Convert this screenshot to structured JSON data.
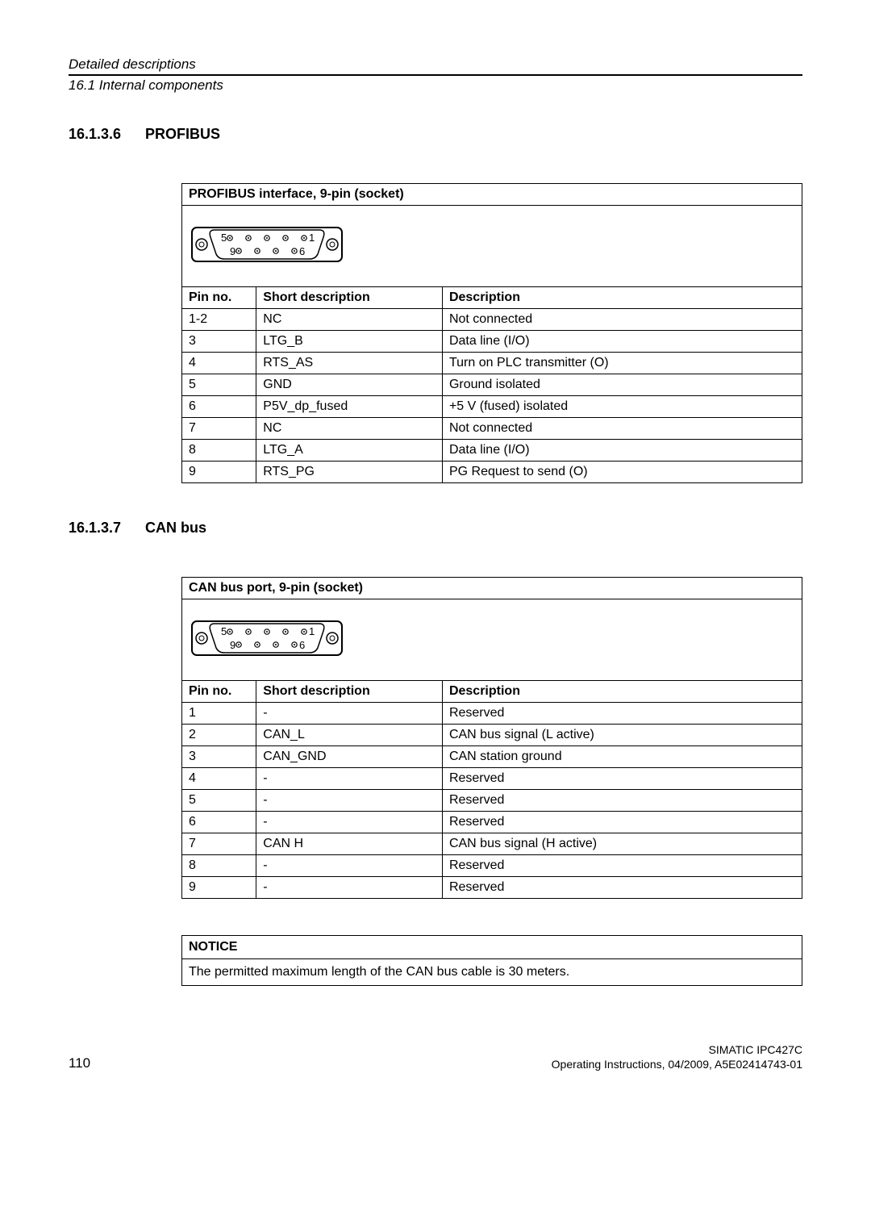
{
  "header": {
    "chapter": "Detailed descriptions",
    "section": "16.1 Internal components"
  },
  "section1": {
    "number": "16.1.3.6",
    "title": "PROFIBUS",
    "table_title": "PROFIBUS interface, 9-pin (socket)",
    "columns": [
      "Pin no.",
      "Short description",
      "Description"
    ],
    "rows": [
      [
        "1-2",
        "NC",
        "Not connected"
      ],
      [
        "3",
        "LTG_B",
        "Data line (I/O)"
      ],
      [
        "4",
        "RTS_AS",
        "Turn on PLC transmitter (O)"
      ],
      [
        "5",
        "GND",
        "Ground isolated"
      ],
      [
        "6",
        "P5V_dp_fused",
        "+5 V (fused) isolated"
      ],
      [
        "7",
        "NC",
        "Not connected"
      ],
      [
        "8",
        "LTG_A",
        "Data line (I/O)"
      ],
      [
        "9",
        "RTS_PG",
        "PG Request to send (O)"
      ]
    ]
  },
  "section2": {
    "number": "16.1.3.7",
    "title": "CAN bus",
    "table_title": "CAN bus port, 9-pin (socket)",
    "columns": [
      "Pin no.",
      "Short description",
      "Description"
    ],
    "rows": [
      [
        "1",
        "-",
        "Reserved"
      ],
      [
        "2",
        "CAN_L",
        "CAN bus signal (L active)"
      ],
      [
        "3",
        "CAN_GND",
        "CAN station ground"
      ],
      [
        "4",
        "-",
        "Reserved"
      ],
      [
        "5",
        "-",
        "Reserved"
      ],
      [
        "6",
        "-",
        "Reserved"
      ],
      [
        "7",
        "CAN H",
        "CAN bus signal (H active)"
      ],
      [
        "8",
        "-",
        "Reserved"
      ],
      [
        "9",
        "-",
        "Reserved"
      ]
    ]
  },
  "notice": {
    "title": "NOTICE",
    "body": "The permitted maximum length of the CAN bus cable is 30 meters."
  },
  "footer": {
    "page": "110",
    "product": "SIMATIC IPC427C",
    "docinfo": "Operating Instructions, 04/2009, A5E02414743-01"
  },
  "connector_diagram": {
    "pin_labels_top": [
      "5",
      "1"
    ],
    "pin_labels_bottom": [
      "9",
      "6"
    ]
  }
}
